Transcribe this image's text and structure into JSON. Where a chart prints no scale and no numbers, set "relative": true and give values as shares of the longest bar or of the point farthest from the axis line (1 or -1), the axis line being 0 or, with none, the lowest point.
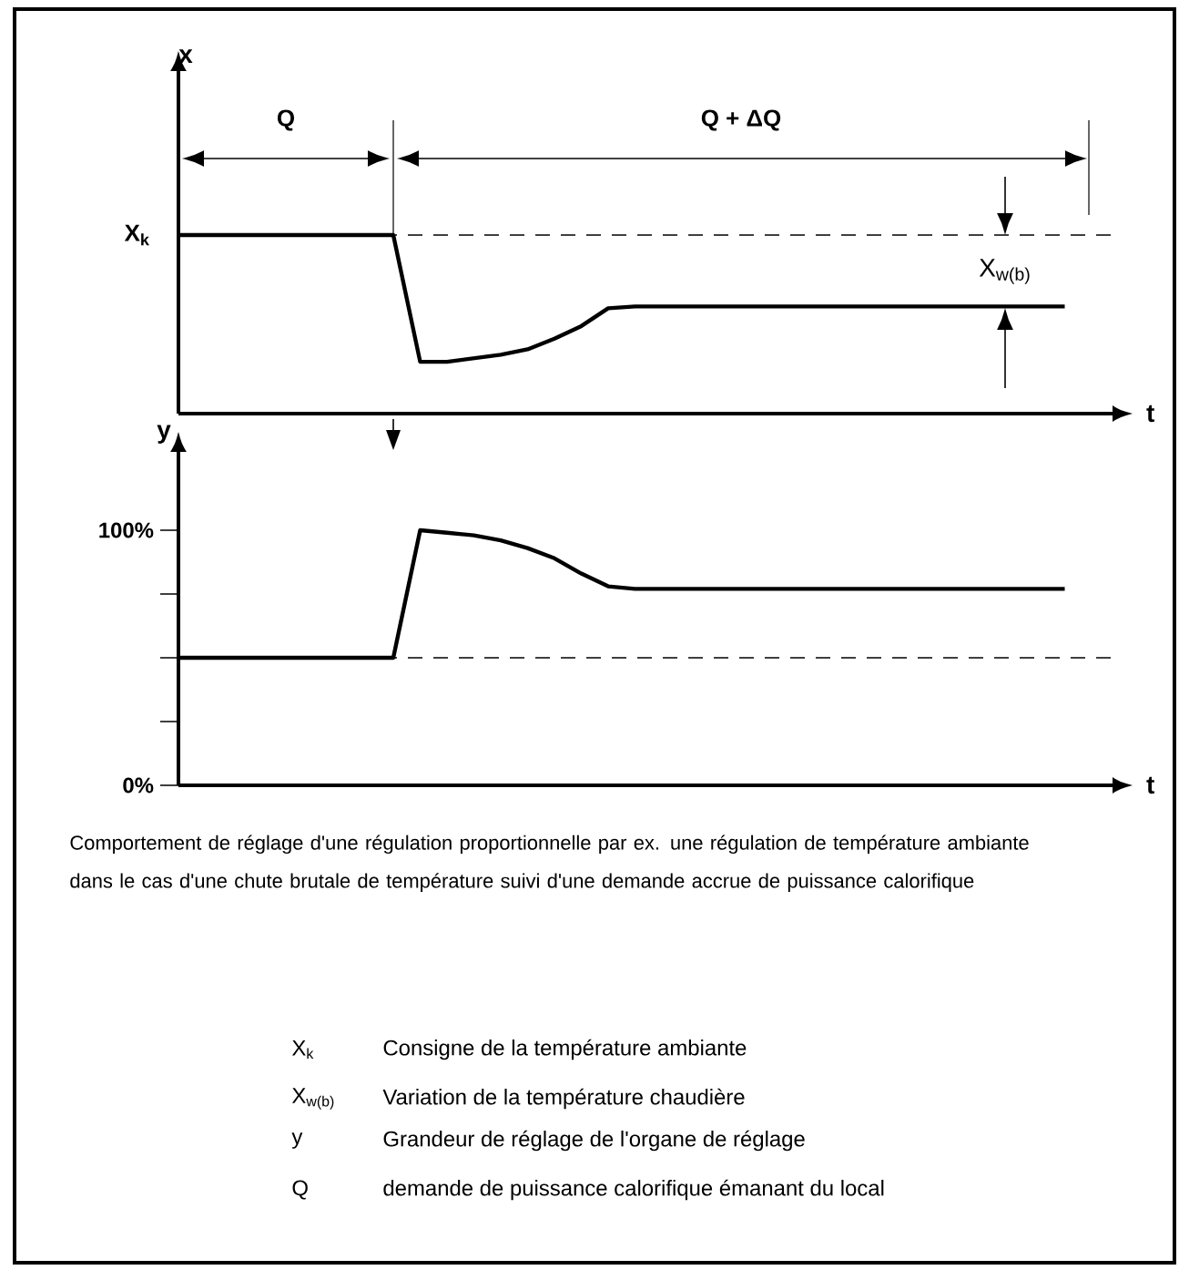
{
  "chart_data": [
    {
      "type": "line",
      "xlabel": "t",
      "ylabel": "x",
      "relative": true,
      "categories": [
        null,
        null,
        null,
        null,
        null,
        null,
        null,
        null,
        null,
        null,
        null,
        null,
        null,
        null,
        null,
        null,
        null,
        null,
        null,
        null,
        null,
        null,
        null,
        null,
        null,
        null,
        null,
        null,
        null,
        null,
        null,
        null,
        null,
        null
      ],
      "series": [
        {
          "color": "#000000",
          "values": [
            1,
            1,
            1,
            1,
            1,
            1,
            1,
            1,
            1,
            0.29,
            0.29,
            0.31,
            0.33,
            0.36,
            0.42,
            0.49,
            0.59,
            0.6,
            0.6,
            0.6,
            0.6,
            0.6,
            0.6,
            0.6,
            0.6,
            0.6,
            0.6,
            0.6,
            0.6,
            0.6,
            0.6,
            0.6,
            0.6,
            0.6
          ]
        }
      ],
      "ref_lines": [
        {
          "axis": "y",
          "value": 1,
          "label": "X$_{k}$",
          "line_style": "dashed"
        }
      ],
      "annotations": [
        "Q",
        "Q + ΔQ",
        "X$_{w(b)}$"
      ]
    },
    {
      "type": "line",
      "xlabel": "t",
      "ylabel": "y",
      "categories": [
        null,
        null,
        null,
        null,
        null,
        null,
        null,
        null,
        null,
        null,
        null,
        null,
        null,
        null,
        null,
        null,
        null,
        null,
        null,
        null,
        null,
        null,
        null,
        null,
        null,
        null,
        null,
        null,
        null,
        null,
        null,
        null,
        null,
        null
      ],
      "ylim": [
        0,
        130
      ],
      "yticks": [
        {
          "value": 0,
          "label": "0%"
        },
        {
          "value": 25,
          "label": null
        },
        {
          "value": 50,
          "label": null
        },
        {
          "value": 75,
          "label": null
        },
        {
          "value": 100,
          "label": "100%"
        }
      ],
      "series": [
        {
          "color": "#000000",
          "values": [
            50,
            50,
            50,
            50,
            50,
            50,
            50,
            50,
            50,
            100,
            99,
            98,
            96,
            93,
            89,
            83,
            78,
            77,
            77,
            77,
            77,
            77,
            77,
            77,
            77,
            77,
            77,
            77,
            77,
            77,
            77,
            77,
            77,
            77
          ]
        }
      ],
      "ref_lines": [
        {
          "axis": "y",
          "value": 50,
          "line_style": "dashed"
        }
      ],
      "annotations": [
        "Comportement de réglage d'une régulation proportionnelle par ex. une régulation de température ambiante dans le cas d'une chute brutale de température suivi d'une demande accrue de puissance calorifique",
        "X$_{k}$",
        "Consigne de la température ambiante",
        "X$_{w(b)}$",
        "Variation de la température chaudière",
        "y",
        "Grandeur de réglage de l'organe de réglage",
        "Q",
        "demande de puissance calorifique émanant du local"
      ]
    }
  ]
}
